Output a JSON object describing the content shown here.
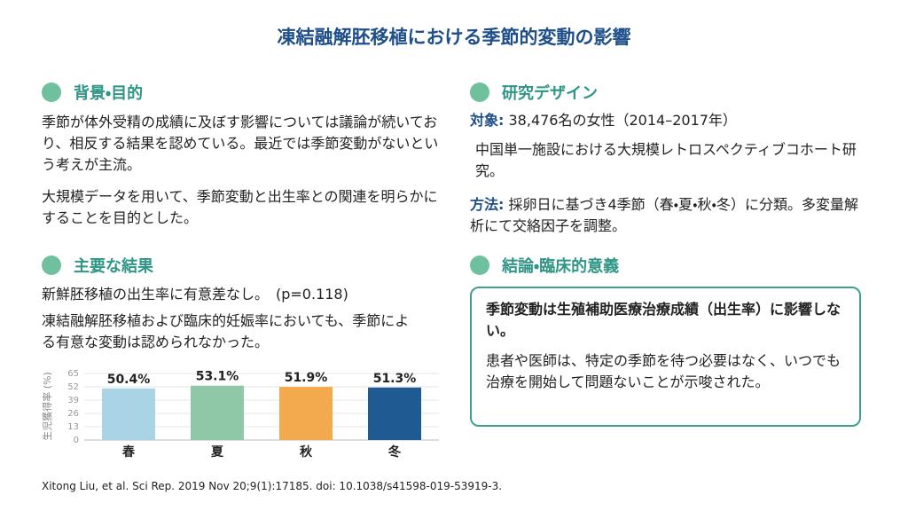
{
  "title": "凍結融解胚移植における季節的変動の影響",
  "background": {
    "heading": "背景・目的",
    "paragraphs": [
      "季節が体外受精の成績に及ぼす影響については議論が続いており、相反する結果を認めている。最近では季節変動がないという考えが主流。",
      "大規模データを用いて、季節変動と出生率との関連を明らかにすることを目的とした。"
    ]
  },
  "design": {
    "heading": "研究デザイン",
    "subject_label": "対象:",
    "subject_text": "38,476名の女性（2014–2017年）",
    "setting": "中国単一施設における大規模レトロスペクティブコホート研究。",
    "method_label": "方法:",
    "method_text": "採卵日に基づき4季節（春・夏・秋・冬）に分類。多変量解析にて交絡因子を調整。"
  },
  "results": {
    "heading": "主要な結果",
    "paragraphs": [
      "新鮮胚移植の出生率に有意差なし。　(p=0.118)",
      "凍結融解胚移植および臨床的妊娠率においても、季節による有意な変動は認められなかった。"
    ]
  },
  "chart_data": {
    "type": "bar",
    "y_label": "生児獲得率 (%)",
    "categories": [
      "春",
      "夏",
      "秋",
      "冬"
    ],
    "values": [
      50.4,
      53.1,
      51.9,
      51.3
    ],
    "value_labels": [
      "50.4%",
      "53.1%",
      "51.9%",
      "51.3%"
    ],
    "colors": [
      "#a8d4e6",
      "#8ec8a6",
      "#f2aa4c",
      "#1f5a93"
    ],
    "ylim": [
      0,
      65
    ],
    "yticks": [
      0,
      13,
      26,
      39,
      52,
      65
    ],
    "grid": true
  },
  "conclusion": {
    "heading": "結論・臨床的意義",
    "lead": "季節変動は生殖補助医療治療成績（出生率）に影響しない。",
    "text": "患者や医師は、特定の季節を待つ必要はなく、いつでも治療を開始して問題ないことが示唆された。"
  },
  "citation": "Xitong Liu, et al. Sci Rep. 2019 Nov 20;9(1):17185. doi: 10.1038/s41598-019-53919-3."
}
